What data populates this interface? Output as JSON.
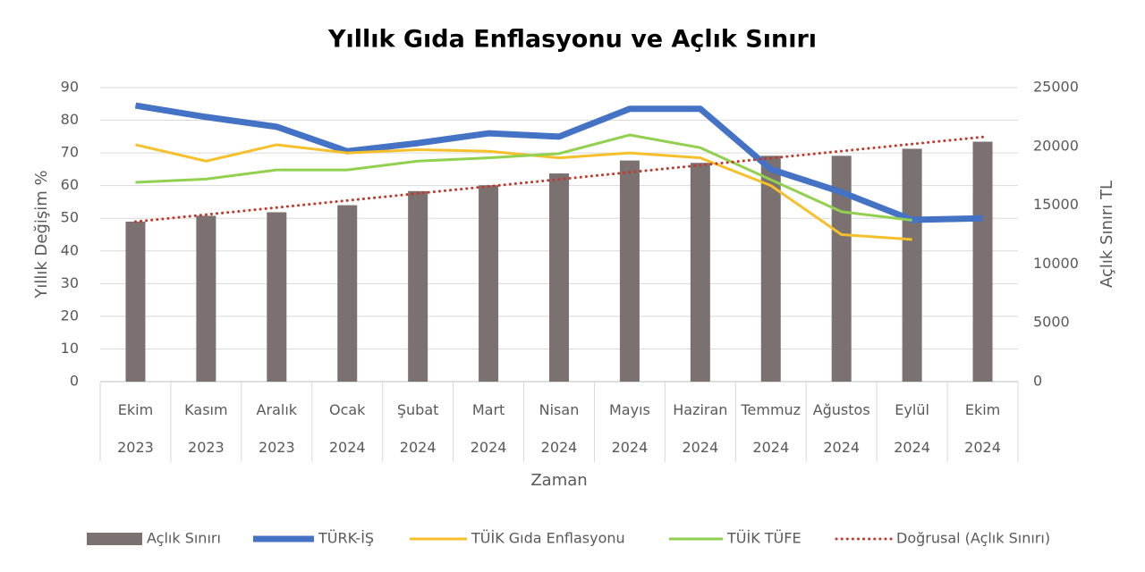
{
  "chart_data": {
    "type": "combo",
    "title": "Yıllık Gıda Enflasyonu ve Açlık Sınırı",
    "xlabel": "Zaman",
    "ylabel": "Yıllık Değişim %",
    "y2label": "Açlık Sınırı TL",
    "categories": [
      "Ekim 2023",
      "Kasım 2023",
      "Aralık 2023",
      "Ocak 2024",
      "Şubat 2024",
      "Mart 2024",
      "Nisan 2024",
      "Mayıs 2024",
      "Haziran 2024",
      "Temmuz 2024",
      "Ağustos 2024",
      "Eylül 2024",
      "Ekim 2024"
    ],
    "ylim": [
      0,
      90
    ],
    "yticks": [
      0,
      10,
      20,
      30,
      40,
      50,
      60,
      70,
      80,
      90
    ],
    "y2lim": [
      0,
      25000
    ],
    "y2ticks": [
      0,
      5000,
      10000,
      15000,
      20000,
      25000
    ],
    "grid": true,
    "legend": "bottom",
    "series": [
      {
        "name": "Açlık Sınırı",
        "type": "bar",
        "axis": "y2",
        "color": "#7a7170",
        "values": [
          13600,
          14100,
          14400,
          15000,
          16200,
          16700,
          17700,
          18800,
          18600,
          19200,
          19200,
          19800,
          20400
        ]
      },
      {
        "name": "TÜRK-İŞ",
        "type": "line",
        "color": "#4472c4",
        "width": 7,
        "values": [
          84.5,
          81,
          78,
          70.5,
          73,
          76,
          75,
          83.5,
          83.5,
          65,
          58,
          49.5,
          50
        ]
      },
      {
        "name": "TÜİK Gıda Enflasyonu",
        "type": "line",
        "color": "#f5c02b",
        "width": 3,
        "values": [
          72.5,
          67.5,
          72.5,
          70,
          71,
          70.5,
          68.5,
          70,
          68.5,
          60,
          45,
          43.5,
          null
        ]
      },
      {
        "name": "TÜİK TÜFE",
        "type": "line",
        "color": "#92d050",
        "width": 3,
        "values": [
          61,
          62,
          64.8,
          64.8,
          67.5,
          68.5,
          69.8,
          75.5,
          71.6,
          61.8,
          52,
          49.4,
          null
        ]
      },
      {
        "name": "Doğrusal (Açlık Sınırı)",
        "type": "trend",
        "axis": "y2",
        "color": "#c0392b",
        "width": 3,
        "values": [
          13600,
          14200,
          14800,
          15400,
          16000,
          16600,
          17200,
          17800,
          18400,
          19000,
          19600,
          20200,
          20800
        ]
      }
    ]
  }
}
